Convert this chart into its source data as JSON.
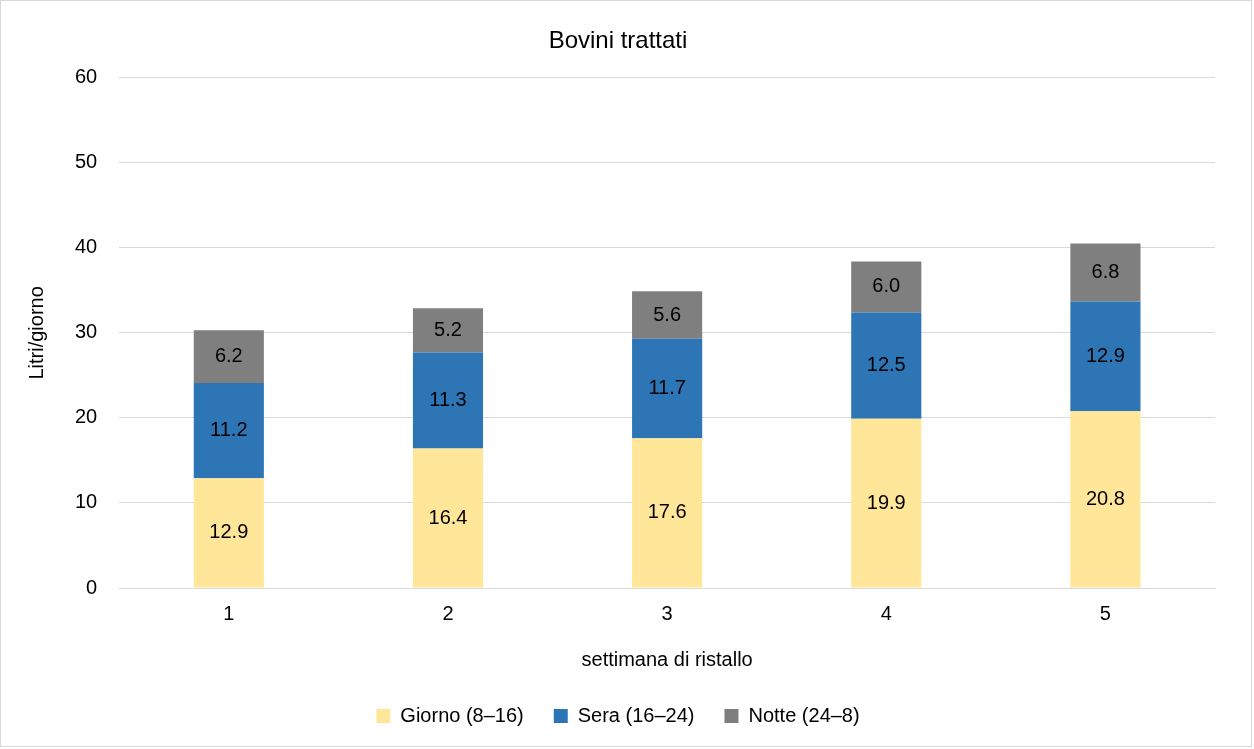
{
  "chart_data": {
    "type": "bar",
    "title": "Bovini trattati",
    "xlabel": "settimana di ristallo",
    "ylabel": "Litri/giorno",
    "categories": [
      "1",
      "2",
      "3",
      "4",
      "5"
    ],
    "series": [
      {
        "name": "Giorno (8–16)",
        "color": "#ffe699",
        "values": [
          12.9,
          16.4,
          17.6,
          19.9,
          20.8
        ],
        "value_labels": [
          "12.9",
          "16.4",
          "17.6",
          "19.9",
          "20.8"
        ]
      },
      {
        "name": "Sera (16–24)",
        "color": "#2e75b6",
        "values": [
          11.2,
          11.3,
          11.7,
          12.5,
          12.9
        ],
        "value_labels": [
          "11.2",
          "11.3",
          "11.7",
          "12.5",
          "12.9"
        ]
      },
      {
        "name": "Notte (24–8)",
        "color": "#7f7f7f",
        "values": [
          6.2,
          5.2,
          5.6,
          6.0,
          6.8
        ],
        "value_labels": [
          "6.2",
          "5.2",
          "5.6",
          "6.0",
          "6.8"
        ]
      }
    ],
    "stacked": true,
    "ylim": [
      0,
      60
    ],
    "yticks": [
      0,
      10,
      20,
      30,
      40,
      50,
      60
    ],
    "grid": "y",
    "legend": "bottom"
  }
}
